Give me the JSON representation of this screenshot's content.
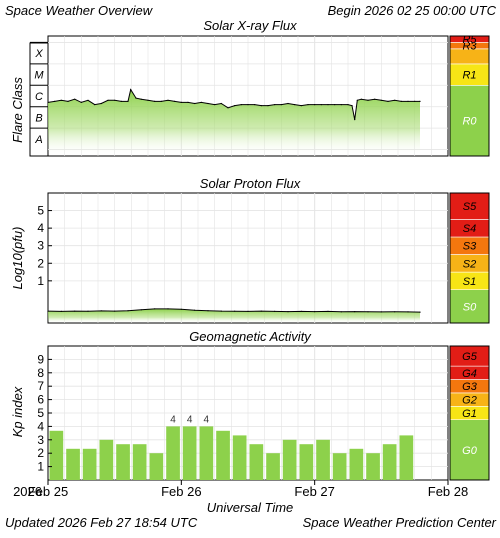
{
  "header": {
    "title": "Space Weather Overview",
    "begin": "Begin 2026 02 25 00:00 UTC"
  },
  "footer": {
    "updated": "Updated 2026 Feb 27 18:54 UTC",
    "center": "Space Weather Prediction Center"
  },
  "xaxis": {
    "label": "Universal Time",
    "year": "2026",
    "ticks": [
      "Feb 25",
      "Feb 26",
      "Feb 27",
      "Feb 28"
    ]
  },
  "colors": {
    "fill": "#8dd14b",
    "line": "#000000",
    "grid": "#e4e4e4",
    "scale_green": "#8dd14b",
    "scale_yellow": "#f7e516",
    "scale_light_orange": "#f7b317",
    "scale_orange": "#f4770e",
    "scale_red": "#e21d16"
  },
  "chart_data": [
    {
      "type": "area",
      "title": "Solar X-ray Flux",
      "ylabel": "Flare Class",
      "ytick_labels": [
        "A",
        "B",
        "C",
        "M",
        "X"
      ],
      "y_unit": "log10(flux W/m²)",
      "ylim": [
        -8.3,
        -2.7
      ],
      "grid": true,
      "scale_labels": [
        "R5",
        "R3",
        "R1",
        "R0"
      ],
      "x_days": [
        0.0,
        0.05,
        0.1,
        0.15,
        0.2,
        0.25,
        0.3,
        0.35,
        0.4,
        0.45,
        0.5,
        0.55,
        0.6,
        0.62,
        0.66,
        0.7,
        0.75,
        0.8,
        0.85,
        0.9,
        0.95,
        1.0,
        1.05,
        1.1,
        1.15,
        1.2,
        1.25,
        1.3,
        1.35,
        1.4,
        1.45,
        1.5,
        1.55,
        1.6,
        1.65,
        1.7,
        1.75,
        1.8,
        1.85,
        1.9,
        1.95,
        2.0,
        2.05,
        2.1,
        2.15,
        2.2,
        2.25,
        2.28,
        2.3,
        2.32,
        2.35,
        2.4,
        2.45,
        2.5,
        2.55,
        2.6,
        2.65,
        2.7,
        2.75,
        2.79
      ],
      "values": [
        -5.8,
        -5.75,
        -5.7,
        -5.75,
        -5.65,
        -5.8,
        -5.7,
        -5.9,
        -5.85,
        -5.7,
        -5.7,
        -5.75,
        -5.75,
        -5.2,
        -5.6,
        -5.65,
        -5.7,
        -5.75,
        -5.75,
        -5.7,
        -5.75,
        -5.8,
        -5.8,
        -5.85,
        -5.8,
        -5.85,
        -5.9,
        -5.85,
        -6.05,
        -5.95,
        -5.9,
        -5.9,
        -5.9,
        -5.95,
        -5.95,
        -5.9,
        -5.9,
        -5.85,
        -5.9,
        -5.95,
        -5.9,
        -5.9,
        -5.9,
        -5.9,
        -5.9,
        -5.9,
        -5.9,
        -5.95,
        -6.6,
        -5.7,
        -5.65,
        -5.7,
        -5.65,
        -5.7,
        -5.75,
        -5.7,
        -5.75,
        -5.75,
        -5.75,
        -5.75
      ]
    },
    {
      "type": "area",
      "title": "Solar Proton Flux",
      "ylabel": "Log10(pfu)",
      "ylim": [
        -1.4,
        6.0
      ],
      "yticks": [
        1,
        2,
        3,
        4,
        5
      ],
      "grid": true,
      "scale_labels": [
        "S5",
        "S4",
        "S3",
        "S2",
        "S1",
        "S0"
      ],
      "x_days": [
        0.0,
        0.1,
        0.2,
        0.3,
        0.4,
        0.5,
        0.6,
        0.7,
        0.8,
        0.9,
        1.0,
        1.1,
        1.2,
        1.3,
        1.4,
        1.5,
        1.6,
        1.7,
        1.8,
        1.9,
        2.0,
        2.1,
        2.2,
        2.3,
        2.4,
        2.5,
        2.6,
        2.7,
        2.79
      ],
      "values": [
        -0.72,
        -0.74,
        -0.72,
        -0.73,
        -0.71,
        -0.72,
        -0.7,
        -0.65,
        -0.6,
        -0.6,
        -0.62,
        -0.67,
        -0.7,
        -0.72,
        -0.73,
        -0.74,
        -0.72,
        -0.74,
        -0.75,
        -0.74,
        -0.75,
        -0.74,
        -0.76,
        -0.75,
        -0.76,
        -0.77,
        -0.76,
        -0.77,
        -0.78
      ]
    },
    {
      "type": "bar",
      "title": "Geomagnetic Activity",
      "ylabel": "Kp index",
      "ylim": [
        0,
        10
      ],
      "yticks": [
        1,
        2,
        3,
        4,
        5,
        6,
        7,
        8,
        9
      ],
      "grid": true,
      "scale_labels": [
        "G5",
        "G4",
        "G3",
        "G2",
        "G1",
        "G0"
      ],
      "bar_width_days": 0.125,
      "values": [
        3.67,
        2.33,
        2.33,
        3.0,
        2.67,
        2.67,
        2.0,
        4.0,
        4.0,
        4.0,
        3.67,
        3.33,
        2.67,
        2.0,
        3.0,
        2.67,
        3.0,
        2.0,
        2.33,
        2.0,
        2.67,
        3.33
      ],
      "bar_labels": [
        "",
        "",
        "",
        "",
        "",
        "",
        "",
        "4",
        "4",
        "4",
        "",
        "",
        "",
        "",
        "",
        "",
        "",
        "",
        "",
        "",
        "",
        ""
      ]
    }
  ]
}
